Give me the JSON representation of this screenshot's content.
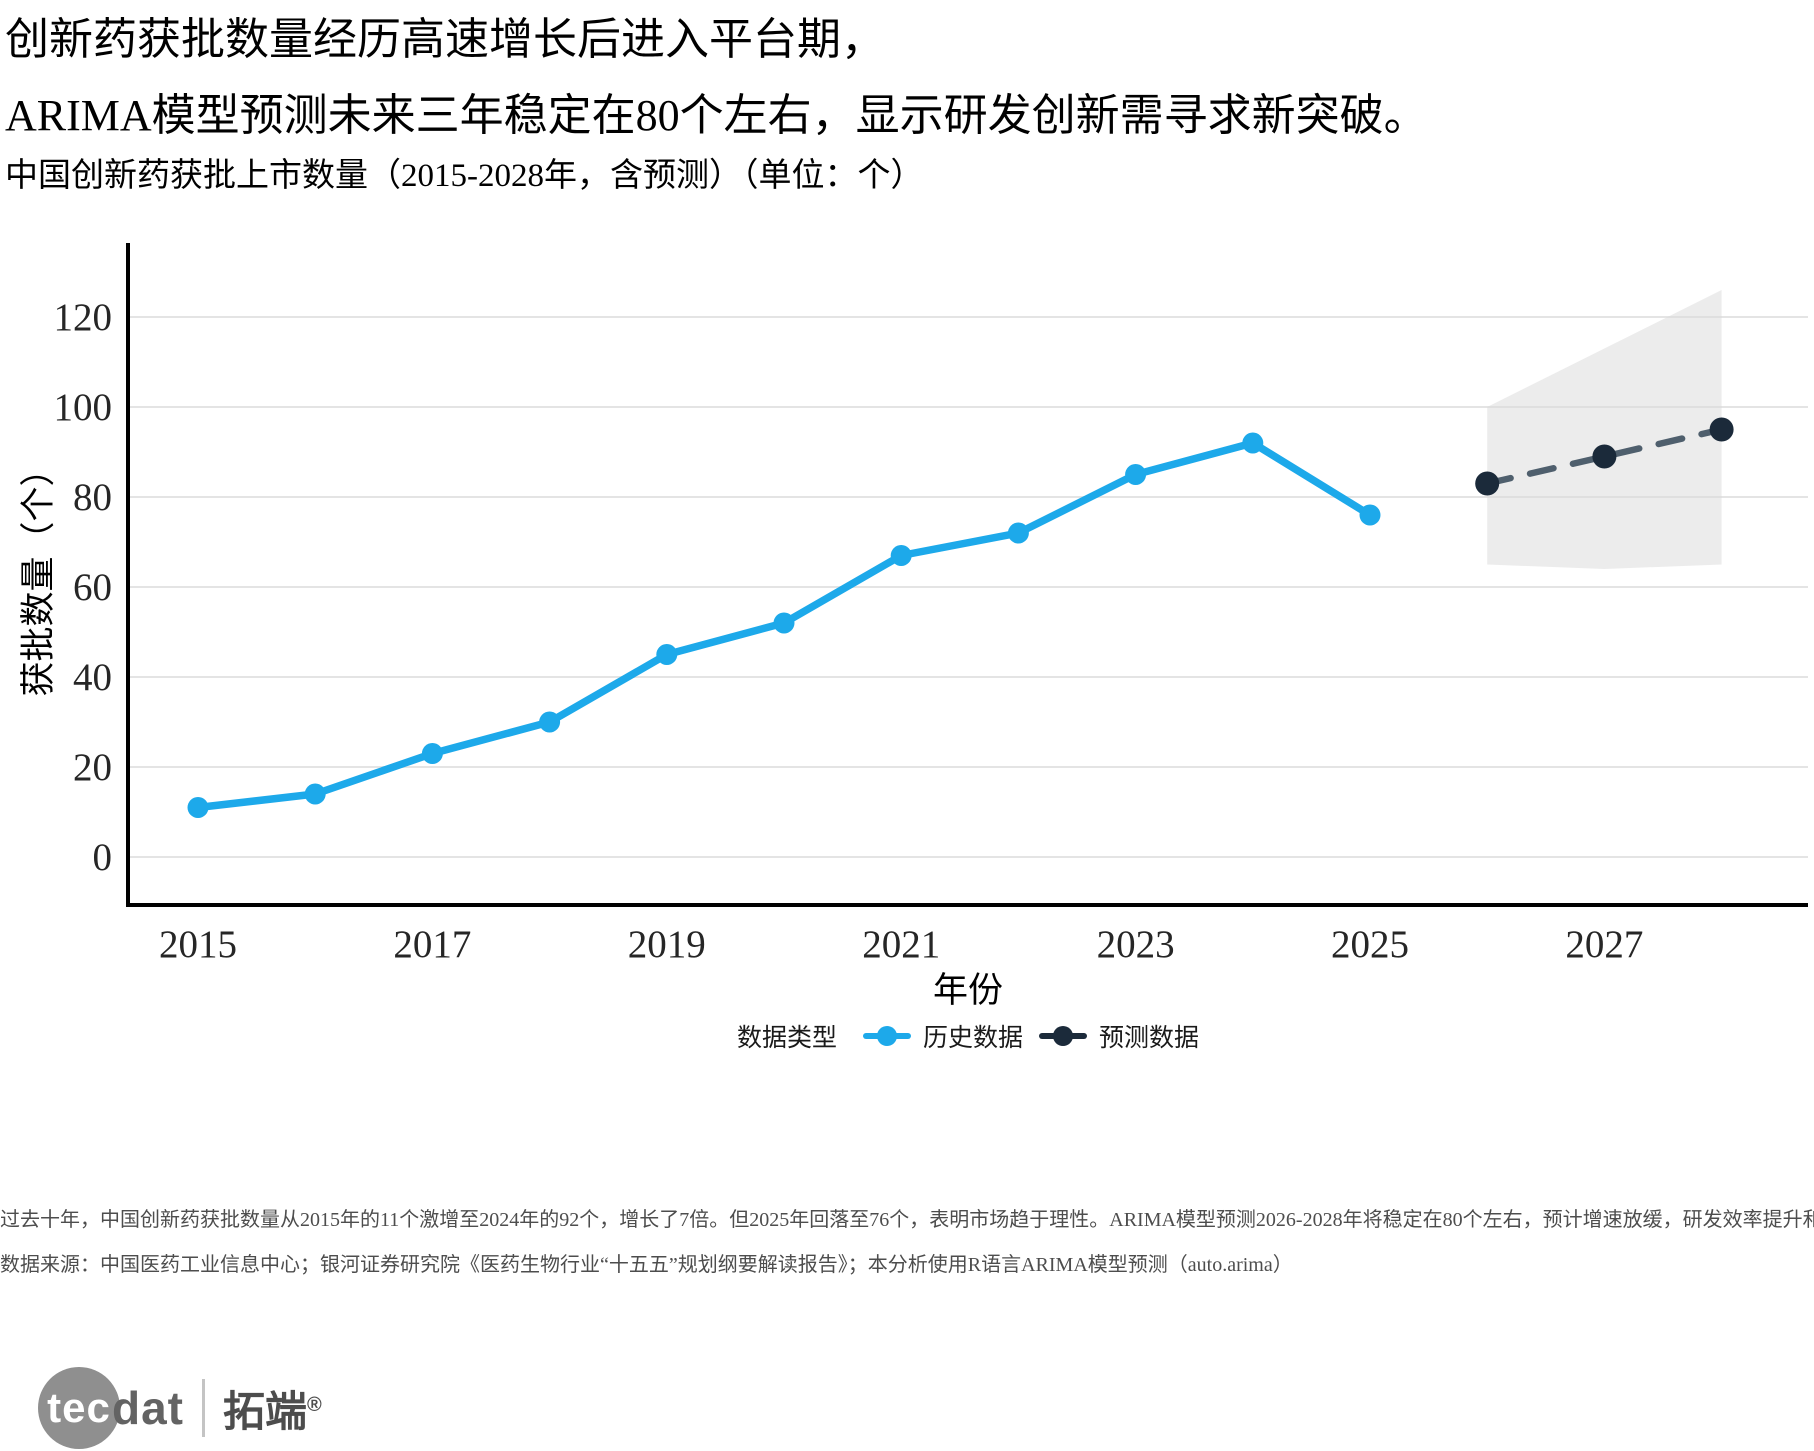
{
  "header": {
    "title_line1": "创新药获批数量经历高速增长后进入平台期，",
    "title_line2": "ARIMA模型预测未来三年稳定在80个左右，显示研发创新需寻求新突破。",
    "subtitle": "中国创新药获批上市数量（2015-2028年，含预测）（单位：个）"
  },
  "chart_data": {
    "type": "line",
    "title": "中国创新药获批上市数量（2015-2028年，含预测）（单位：个）",
    "xlabel": "年份",
    "ylabel": "获批数量（个）",
    "x_ticks": [
      "2015",
      "2017",
      "2019",
      "2021",
      "2023",
      "2025",
      "2027"
    ],
    "y_ticks": [
      0,
      20,
      40,
      60,
      80,
      100,
      120
    ],
    "xlim": [
      2014.4,
      2028.8
    ],
    "ylim": [
      -10.5,
      136
    ],
    "grid": "horizontal-major",
    "legend_position": "bottom",
    "series": [
      {
        "name": "历史数据",
        "style": "solid",
        "color": "#1DA9EA",
        "x": [
          2015,
          2016,
          2017,
          2018,
          2019,
          2020,
          2021,
          2022,
          2023,
          2024,
          2025
        ],
        "values": [
          11,
          14,
          23,
          30,
          45,
          52,
          67,
          72,
          85,
          92,
          76
        ]
      },
      {
        "name": "预测数据",
        "style": "dashed",
        "color": "#1B2A3A",
        "line_color": "#4F5F6D",
        "x": [
          2026,
          2027,
          2028
        ],
        "values": [
          83,
          89,
          95
        ]
      }
    ],
    "confidence_band": {
      "series": "预测数据",
      "x": [
        2026,
        2027,
        2028
      ],
      "lower": [
        65,
        64,
        65
      ],
      "upper": [
        100,
        113,
        126
      ],
      "color": "#D9D9D9",
      "opacity": 0.5
    }
  },
  "legend": {
    "title": "数据类型",
    "items": [
      {
        "label": "历史数据",
        "color": "#1DA9EA"
      },
      {
        "label": "预测数据",
        "color": "#1B2A3A"
      }
    ]
  },
  "caption": {
    "line1": "过去十年，中国创新药获批数量从2015年的11个激增至2024年的92个，增长了7倍。但2025年回落至76个，表明市场趋于理性。ARIMA模型预测2026-2028年将稳定在80个左右，预计增速放缓，研发效率提升和",
    "line2": "数据来源：中国医药工业信息中心；银河证券研究院《医药生物行业“十五五”规划纲要解读报告》；本分析使用R语言ARIMA模型预测（auto.arima）"
  },
  "logo": {
    "tec": "tec",
    "dat": "dat",
    "cn": "拓端",
    "reg": "®"
  },
  "colors": {
    "axis": "#000000",
    "gridline": "#e4e4e4",
    "tick_text": "#262626",
    "caption_text": "#4d4d4d"
  }
}
